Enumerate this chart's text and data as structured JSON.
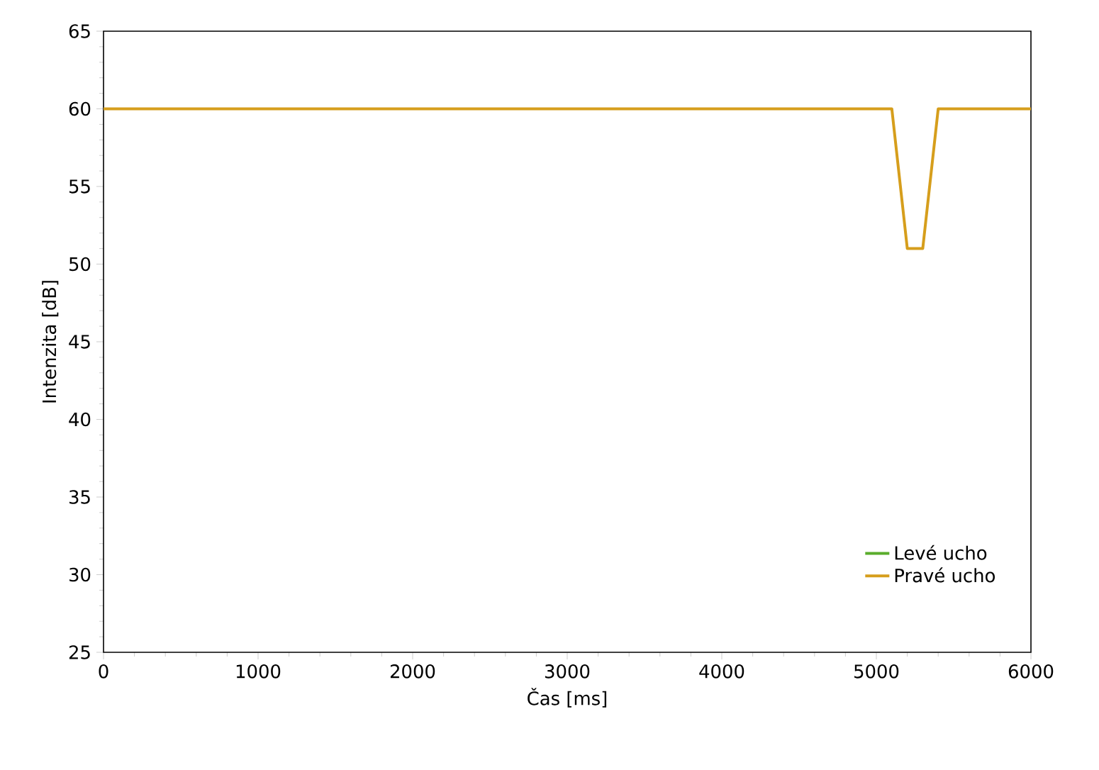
{
  "chart_data": {
    "type": "line",
    "xlabel": "Čas [ms]",
    "ylabel": "Intenzita [dB]",
    "xlim": [
      0,
      6000
    ],
    "xticks": [
      0,
      1000,
      2000,
      3000,
      4000,
      5000,
      6000
    ],
    "ylim": [
      25,
      65
    ],
    "yticks": [
      25,
      30,
      35,
      40,
      45,
      50,
      55,
      60,
      65
    ],
    "legend": "bottom right",
    "x": [
      0,
      5100,
      5200,
      5300,
      5400,
      6000
    ],
    "grid": false,
    "marker": "none",
    "line_style": "solid",
    "series": [
      {
        "name": "Levé ucho",
        "color": "#5aad2c",
        "values": [
          null,
          null,
          null,
          null,
          null,
          null
        ]
      },
      {
        "name": "Pravé ucho",
        "color": "#d69e1c",
        "values": [
          60,
          60,
          51,
          51,
          60,
          60
        ]
      }
    ]
  }
}
